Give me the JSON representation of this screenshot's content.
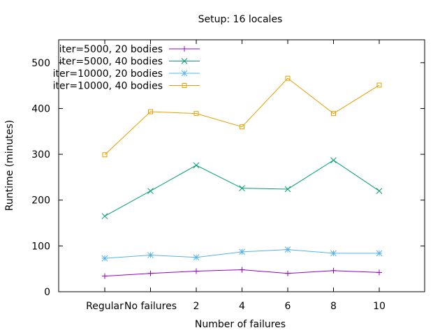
{
  "chart_data": {
    "type": "line",
    "title": "Setup: 16 locales",
    "xlabel": "Number of failures",
    "ylabel": "Runtime (minutes)",
    "categories": [
      "Regular",
      "No failures",
      "2",
      "4",
      "6",
      "8",
      "10"
    ],
    "ylim": [
      0,
      550
    ],
    "yticks": [
      0,
      100,
      200,
      300,
      400,
      500
    ],
    "grid": false,
    "legend_position": "top-left",
    "series": [
      {
        "name": "iter=5000, 20 bodies",
        "color": "#9400d3",
        "marker": "plus",
        "values": [
          34,
          40,
          45,
          48,
          40,
          46,
          42
        ]
      },
      {
        "name": "iter=5000, 40 bodies",
        "color": "#009e73",
        "marker": "cross",
        "values": [
          165,
          220,
          276,
          226,
          224,
          287,
          220
        ]
      },
      {
        "name": "iter=10000, 20 bodies",
        "color": "#56b4e9",
        "marker": "star",
        "values": [
          73,
          80,
          75,
          87,
          92,
          84,
          84
        ]
      },
      {
        "name": "iter=10000, 40 bodies",
        "color": "#e69f00",
        "marker": "square",
        "values": [
          299,
          393,
          389,
          360,
          466,
          389,
          451
        ]
      }
    ]
  }
}
